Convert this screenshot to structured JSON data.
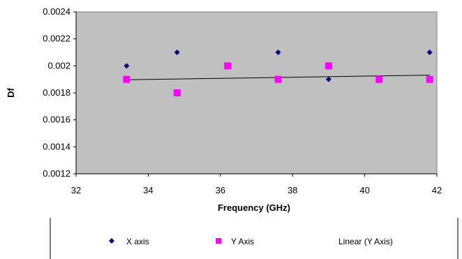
{
  "chart_data": {
    "type": "scatter",
    "title": "",
    "xlabel": "Frequency (GHz)",
    "ylabel": "Df",
    "xlim": [
      32,
      42
    ],
    "ylim": [
      0.0012,
      0.0024
    ],
    "x_ticks": [
      "32",
      "34",
      "36",
      "38",
      "40",
      "42"
    ],
    "y_ticks": [
      "0.0012",
      "0.0014",
      "0.0016",
      "0.0018",
      "0.002",
      "0.0022",
      "0.0024"
    ],
    "grid": false,
    "plot_background": "#C0C0C0",
    "legend_position": "bottom",
    "series": [
      {
        "name": "X axis",
        "marker": "diamond",
        "color": "#000080",
        "x": [
          33.4,
          34.8,
          37.6,
          39.0,
          41.8
        ],
        "y": [
          0.002,
          0.0021,
          0.0021,
          0.0019,
          0.0021
        ]
      },
      {
        "name": "Y Axis",
        "marker": "square",
        "color": "#FF00FF",
        "x": [
          33.4,
          34.8,
          36.2,
          37.6,
          39.0,
          40.4,
          41.8
        ],
        "y": [
          0.0019,
          0.0018,
          0.002,
          0.0019,
          0.002,
          0.0019,
          0.0019
        ]
      }
    ],
    "trendline": {
      "name": "Linear (Y Axis)",
      "type": "linear",
      "of_series": "Y Axis",
      "color": "#000000",
      "x": [
        33.4,
        41.8
      ],
      "y": [
        0.001897,
        0.001931
      ]
    }
  }
}
